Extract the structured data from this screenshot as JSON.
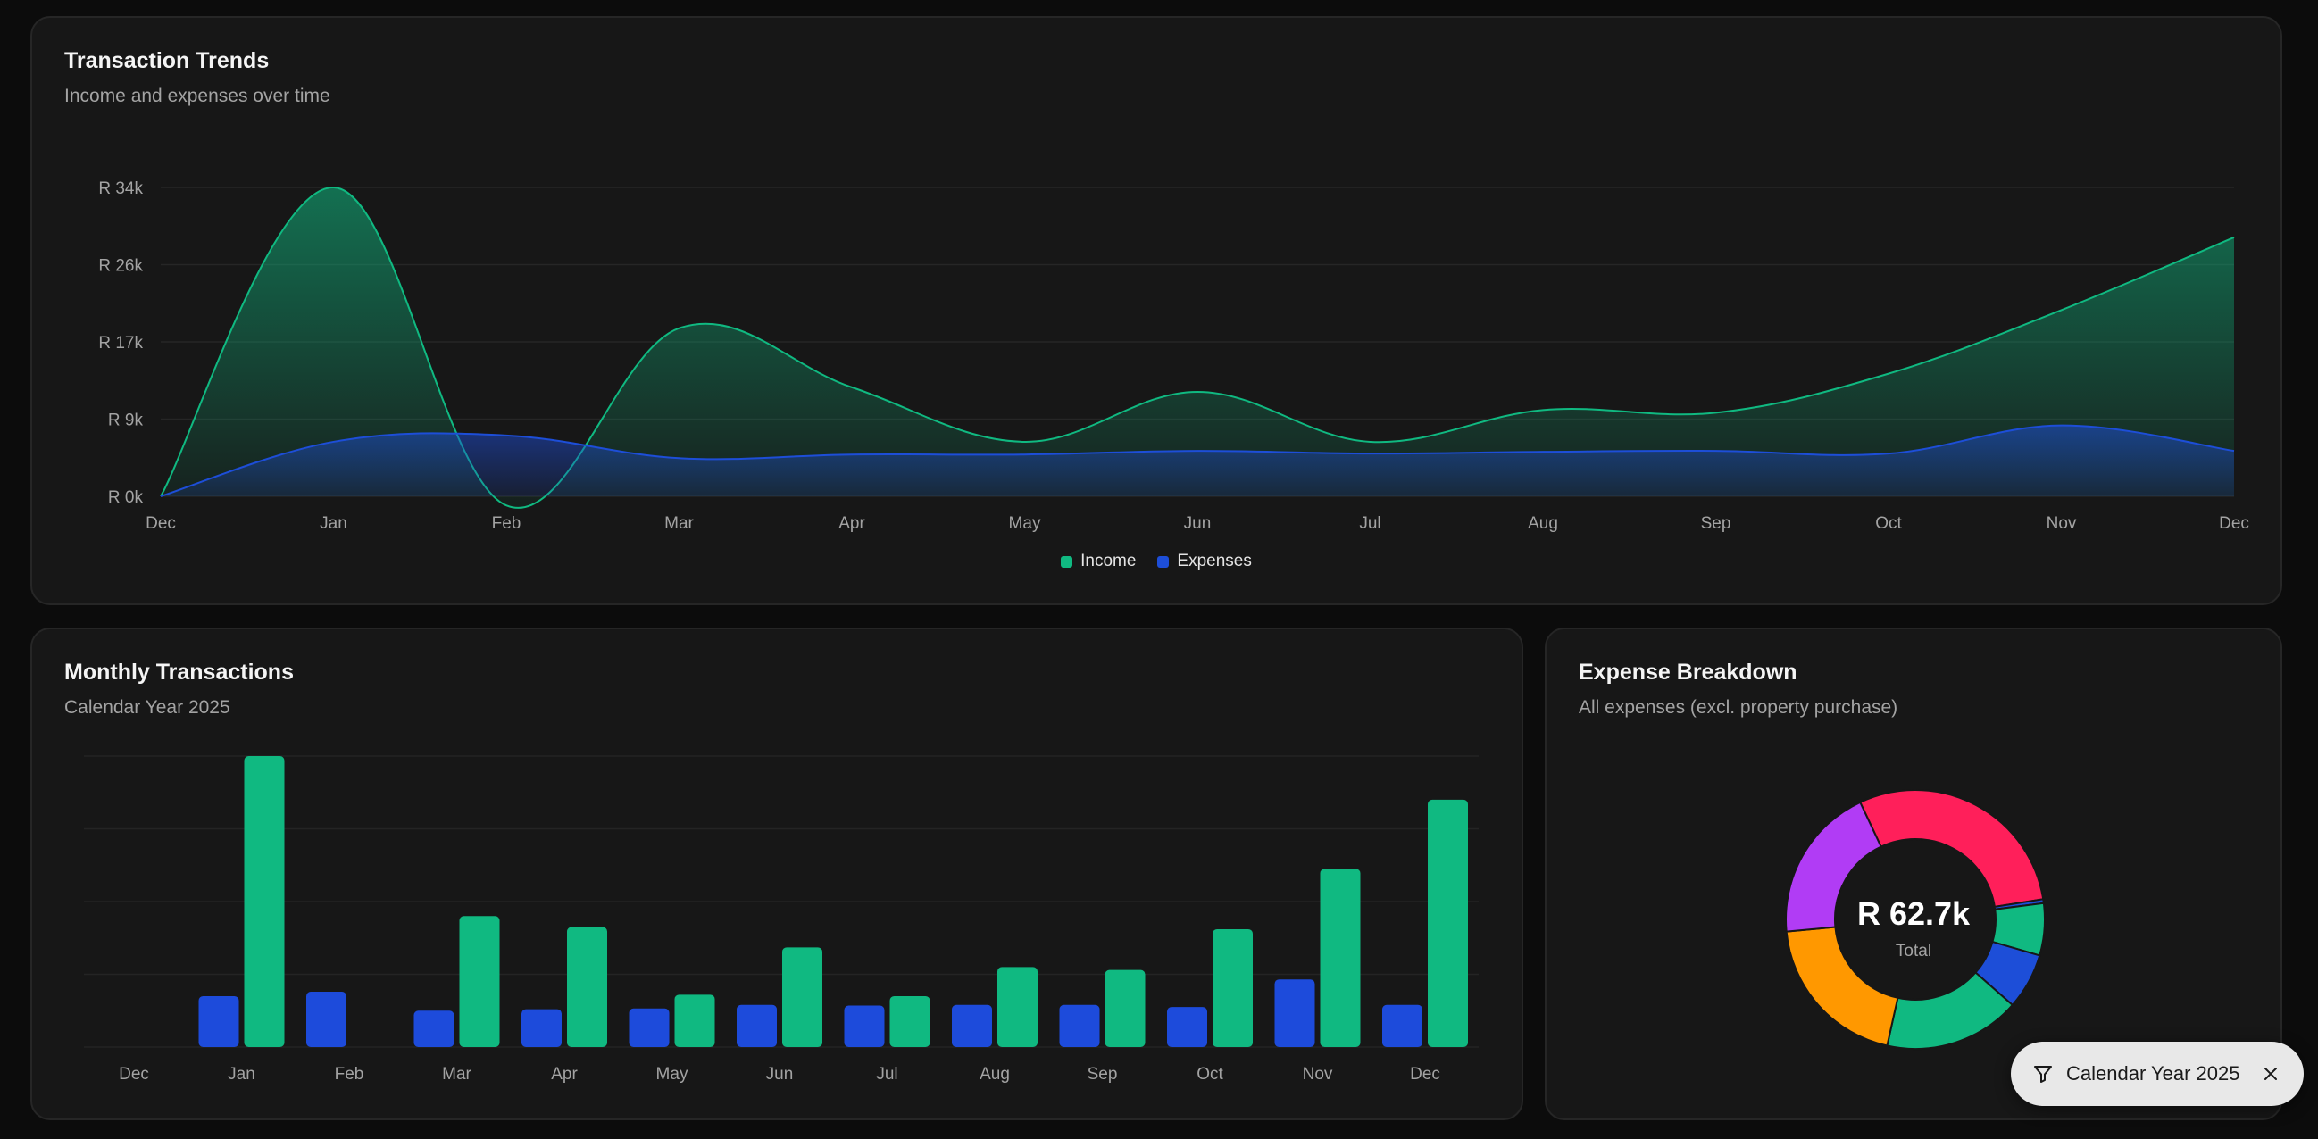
{
  "trends": {
    "title": "Transaction Trends",
    "subtitle": "Income and expenses over time",
    "legend": [
      "Income",
      "Expenses"
    ]
  },
  "monthly": {
    "title": "Monthly Transactions",
    "subtitle": "Calendar Year 2025"
  },
  "breakdown": {
    "title": "Expense Breakdown",
    "subtitle": "All expenses (excl. property purchase)",
    "total_value": "R 62.7k",
    "total_label": "Total"
  },
  "filter_chip": {
    "label": "Calendar Year 2025"
  },
  "colors": {
    "income": "#10b981",
    "expenses": "#1d4ed8",
    "bar_income": "#10b981",
    "bar_expenses": "#1d4bdb"
  },
  "icons": {
    "filter": "filter-icon",
    "close": "close-icon"
  },
  "chart_data": [
    {
      "type": "area",
      "categories": [
        "Dec",
        "Jan",
        "Feb",
        "Mar",
        "Apr",
        "May",
        "Jun",
        "Jul",
        "Aug",
        "Sep",
        "Oct",
        "Nov",
        "Dec"
      ],
      "ylim": [
        0,
        34000
      ],
      "yticks": [
        0,
        8500,
        17000,
        25500,
        34000
      ],
      "ytick_labels": [
        "R 0k",
        "R 9k",
        "R 17k",
        "R 26k",
        "R 34k"
      ],
      "series": [
        {
          "name": "Income",
          "values": [
            0,
            34000,
            -1000,
            18500,
            12000,
            6000,
            11500,
            6000,
            9500,
            9200,
            13500,
            20500,
            28500
          ]
        },
        {
          "name": "Expenses",
          "values": [
            0,
            6000,
            6700,
            4200,
            4600,
            4600,
            5000,
            4700,
            4900,
            5000,
            4700,
            7800,
            5000
          ]
        }
      ],
      "legend_position": "bottom",
      "grid": true
    },
    {
      "type": "bar",
      "categories": [
        "Dec",
        "Jan",
        "Feb",
        "Mar",
        "Apr",
        "May",
        "Jun",
        "Jul",
        "Aug",
        "Sep",
        "Oct",
        "Nov",
        "Dec"
      ],
      "ylim": [
        0,
        40000
      ],
      "series": [
        {
          "name": "Expenses",
          "values": [
            0,
            7000,
            7600,
            5000,
            5200,
            5300,
            5800,
            5700,
            5800,
            5800,
            5500,
            9300,
            5800
          ]
        },
        {
          "name": "Income",
          "values": [
            0,
            40000,
            0,
            18000,
            16500,
            7200,
            13700,
            7000,
            11000,
            10600,
            16200,
            24500,
            34000
          ]
        }
      ],
      "grid": true
    },
    {
      "type": "pie",
      "total": "R 62.7k",
      "slices": [
        {
          "value": 29.5,
          "color": "#ff1f5a"
        },
        {
          "value": 0.5,
          "color": "#1d4ed8"
        },
        {
          "value": 6.5,
          "color": "#10b981"
        },
        {
          "value": 7.0,
          "color": "#1d4ed8"
        },
        {
          "value": 17.0,
          "color": "#10b981"
        },
        {
          "value": 20.0,
          "color": "#ff9800"
        },
        {
          "value": 19.5,
          "color": "#b13cf5"
        }
      ]
    }
  ]
}
